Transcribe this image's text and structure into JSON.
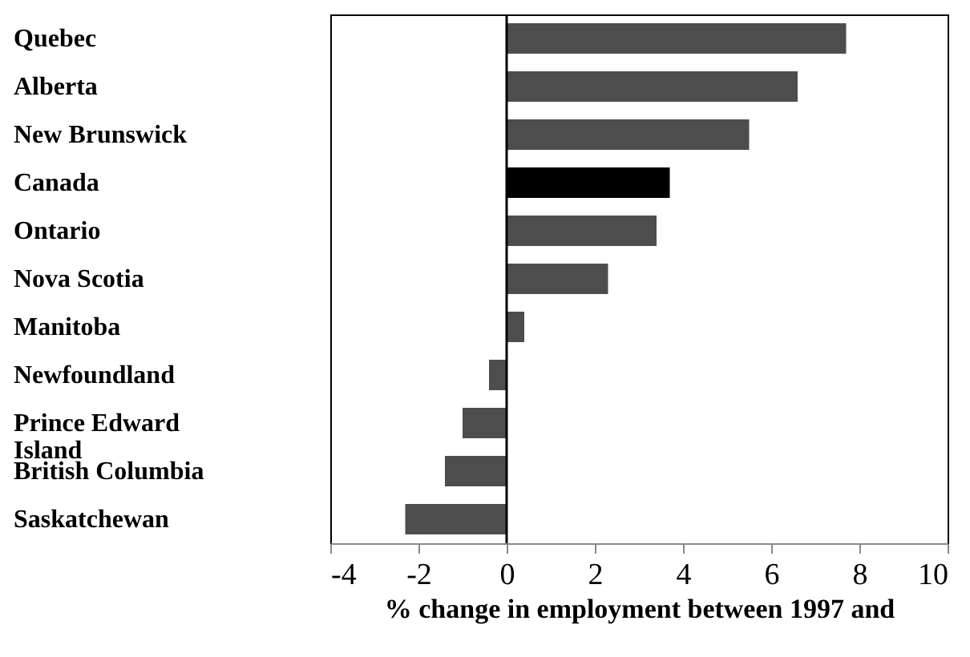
{
  "chart_data": {
    "type": "bar",
    "orientation": "horizontal",
    "categories": [
      "Quebec",
      "Alberta",
      "New Brunswick",
      "Canada",
      "Ontario",
      "Nova Scotia",
      "Manitoba",
      "Newfoundland",
      "Prince Edward Island",
      "British Columbia",
      "Saskatchewan"
    ],
    "values": [
      7.7,
      6.6,
      5.5,
      3.7,
      3.4,
      2.3,
      0.4,
      -0.4,
      -1.0,
      -1.4,
      -2.3
    ],
    "colors": [
      "#4d4d4d",
      "#4d4d4d",
      "#4d4d4d",
      "#000000",
      "#4d4d4d",
      "#4d4d4d",
      "#4d4d4d",
      "#4d4d4d",
      "#4d4d4d",
      "#4d4d4d",
      "#4d4d4d"
    ],
    "xlim": [
      -4,
      10
    ],
    "xticks": [
      -4,
      -2,
      0,
      2,
      4,
      6,
      8,
      10
    ],
    "xlabel": "% change in employment between 1997 and",
    "ref_lines": [
      {
        "axis": "x",
        "value": 0,
        "color": "#000000"
      }
    ],
    "grid": false
  }
}
